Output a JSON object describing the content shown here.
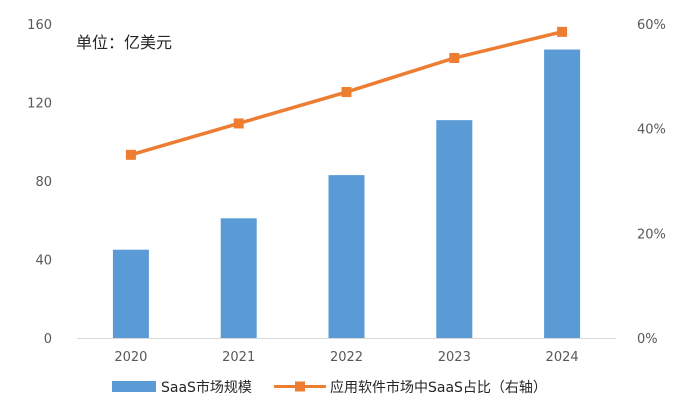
{
  "chart_data": {
    "type": "bar",
    "unit_label": "单位：亿美元",
    "categories": [
      "2020",
      "2021",
      "2022",
      "2023",
      "2024"
    ],
    "series": [
      {
        "name": "SaaS市场规模",
        "type": "bar",
        "axis": "left",
        "values": [
          45,
          61,
          83,
          111,
          147
        ],
        "color": "#5B9BD5"
      },
      {
        "name": "应用软件市场中SaaS占比（右轴）",
        "type": "line",
        "axis": "right",
        "values": [
          35,
          41,
          47,
          53.5,
          58.5
        ],
        "color": "#ED7D31"
      }
    ],
    "y_left": {
      "min": 0,
      "max": 160,
      "ticks": [
        "0",
        "40",
        "80",
        "120",
        "160"
      ]
    },
    "y_right": {
      "min": 0,
      "max": 60,
      "ticks": [
        "0%",
        "20%",
        "40%",
        "60%"
      ]
    },
    "grid": false,
    "legend_position": "bottom"
  }
}
